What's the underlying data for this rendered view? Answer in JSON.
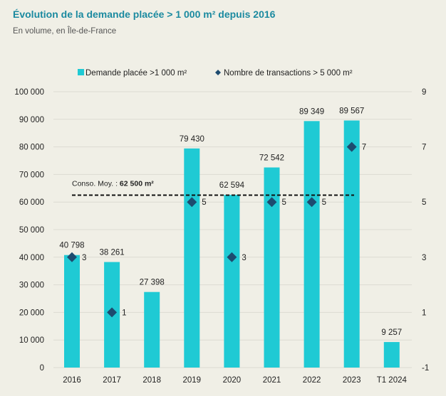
{
  "title": "Évolution de la demande placée > 1 000 m² depuis 2016",
  "subtitle": "En volume, en Île-de-France",
  "colors": {
    "bar": "#1fcad4",
    "marker": "#1d4b6f",
    "title": "#1b8aa0",
    "grid": "#dcdbd2"
  },
  "chart_data": {
    "type": "bar",
    "categories": [
      "2016",
      "2017",
      "2018",
      "2019",
      "2020",
      "2021",
      "2022",
      "2023",
      "T1 2024"
    ],
    "series": [
      {
        "name": "Demande placée >1 000 m²",
        "axis": "left",
        "type": "bar",
        "values": [
          40798,
          38261,
          27398,
          79430,
          62594,
          72542,
          89349,
          89567,
          9257
        ],
        "labels": [
          "40 798",
          "38 261",
          "27 398",
          "79 430",
          "62 594",
          "72 542",
          "89 349",
          "89 567",
          "9 257"
        ]
      },
      {
        "name": "Nombre de transactions > 5 000 m²",
        "axis": "right",
        "type": "scatter",
        "values": [
          3,
          1,
          null,
          5,
          3,
          5,
          5,
          7,
          null
        ],
        "labels": [
          "3",
          "1",
          "",
          "5",
          "3",
          "5",
          "5",
          "7",
          ""
        ]
      }
    ],
    "left_axis": {
      "ylim": [
        0,
        100000
      ],
      "ticks": [
        "0",
        "10 000",
        "20 000",
        "30 000",
        "40 000",
        "50 000",
        "60 000",
        "70 000",
        "80 000",
        "90 000",
        "100 000"
      ]
    },
    "right_axis": {
      "ylim": [
        -1,
        9
      ],
      "ticks": [
        "-1",
        "1",
        "3",
        "5",
        "7",
        "9"
      ],
      "tick_values": [
        -1,
        1,
        3,
        5,
        7,
        9
      ]
    },
    "reference_line": {
      "value": 62500,
      "label_prefix": "Conso. Moy. : ",
      "label_value": "62 500 m²",
      "style": "dashed"
    },
    "legend": {
      "placement": "top-center"
    },
    "grid": true
  }
}
